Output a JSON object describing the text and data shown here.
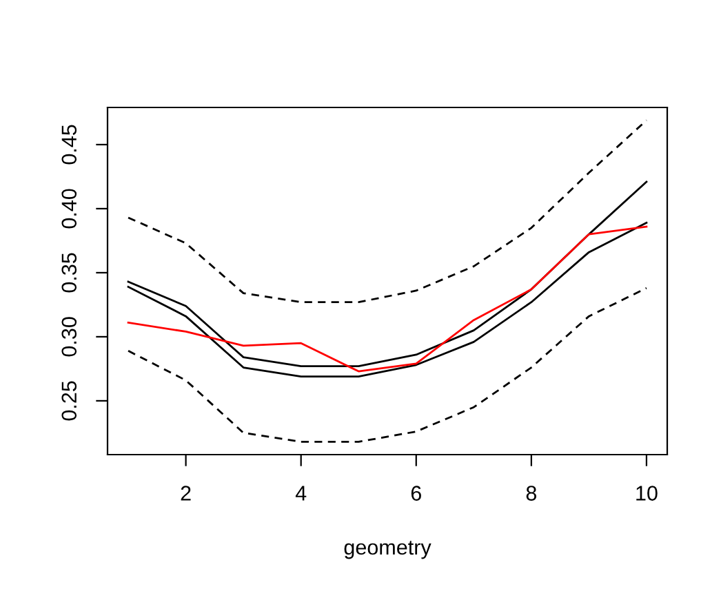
{
  "chart_data": {
    "type": "line",
    "xlabel": "geometry",
    "x": [
      1,
      2,
      3,
      4,
      5,
      6,
      7,
      8,
      9,
      10
    ],
    "series": [
      {
        "color": "#000000",
        "line_style": "dashed",
        "values": [
          0.393,
          0.373,
          0.334,
          0.327,
          0.327,
          0.336,
          0.355,
          0.385,
          0.428,
          0.469
        ]
      },
      {
        "color": "#000000",
        "line_style": "solid",
        "values": [
          0.343,
          0.324,
          0.284,
          0.277,
          0.277,
          0.286,
          0.305,
          0.337,
          0.38,
          0.421
        ]
      },
      {
        "color": "#000000",
        "line_style": "solid",
        "values": [
          0.339,
          0.316,
          0.276,
          0.269,
          0.269,
          0.278,
          0.296,
          0.327,
          0.366,
          0.389
        ]
      },
      {
        "color": "#ff0000",
        "line_style": "solid",
        "values": [
          0.311,
          0.304,
          0.293,
          0.295,
          0.273,
          0.279,
          0.313,
          0.337,
          0.38,
          0.386
        ]
      },
      {
        "color": "#000000",
        "line_style": "dashed",
        "values": [
          0.289,
          0.266,
          0.225,
          0.218,
          0.218,
          0.226,
          0.245,
          0.276,
          0.316,
          0.338
        ]
      }
    ],
    "xlim": [
      0.64,
      10.36
    ],
    "ylim": [
      0.208,
      0.479
    ],
    "xticks": [
      2,
      4,
      6,
      8,
      10
    ],
    "yticks": [
      {
        "value": 0.25,
        "label": "0.25"
      },
      {
        "value": 0.3,
        "label": "0.30"
      },
      {
        "value": 0.35,
        "label": "0.35"
      },
      {
        "value": 0.4,
        "label": "0.40"
      },
      {
        "value": 0.45,
        "label": "0.45"
      }
    ],
    "grid": false,
    "legend": false,
    "marker": "none"
  }
}
